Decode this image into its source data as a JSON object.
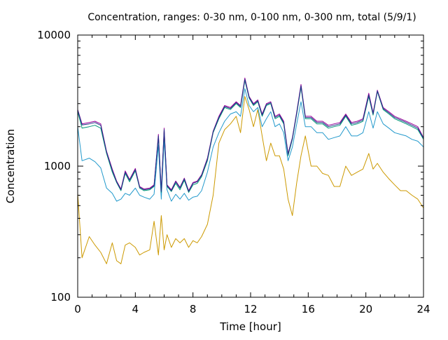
{
  "chart_data": {
    "type": "line",
    "title": "Concentration, ranges: 0-30 nm, 0-100 nm, 0-300 nm, total (5/9/1)",
    "xlabel": "Time [hour]",
    "ylabel": "Concentration",
    "xlim": [
      0,
      24
    ],
    "ylim": [
      100,
      10000
    ],
    "yscale": "log",
    "grid": false,
    "legend": "none",
    "xticks": [
      "0",
      "4",
      "8",
      "12",
      "16",
      "20",
      "24"
    ],
    "yticks": [
      "100",
      "1000",
      "10000"
    ],
    "series": [
      {
        "color": "#cc9900",
        "x": [
          0,
          0.3,
          0.8,
          1.2,
          1.6,
          2.0,
          2.4,
          2.7,
          3.0,
          3.3,
          3.6,
          4.0,
          4.3,
          4.6,
          5.0,
          5.3,
          5.6,
          5.8,
          6.0,
          6.2,
          6.5,
          6.8,
          7.1,
          7.4,
          7.7,
          8.0,
          8.3,
          8.6,
          9.0,
          9.4,
          9.8,
          10.2,
          10.6,
          11.0,
          11.3,
          11.6,
          11.9,
          12.2,
          12.5,
          12.8,
          13.1,
          13.4,
          13.7,
          14.0,
          14.3,
          14.6,
          14.9,
          15.2,
          15.5,
          15.8,
          16.2,
          16.6,
          17.0,
          17.4,
          17.8,
          18.2,
          18.6,
          19.0,
          19.4,
          19.8,
          20.2,
          20.5,
          20.8,
          21.2,
          21.6,
          22.0,
          22.4,
          22.8,
          23.2,
          23.6,
          24.0
        ],
        "y": [
          620,
          200,
          290,
          250,
          220,
          180,
          260,
          190,
          180,
          250,
          260,
          240,
          210,
          220,
          230,
          380,
          210,
          420,
          230,
          300,
          240,
          280,
          260,
          280,
          240,
          270,
          260,
          290,
          360,
          600,
          1500,
          1900,
          2100,
          2400,
          1800,
          3400,
          2700,
          2000,
          2700,
          1700,
          1100,
          1500,
          1200,
          1200,
          950,
          560,
          420,
          750,
          1200,
          1700,
          1000,
          1000,
          880,
          850,
          700,
          700,
          1000,
          850,
          900,
          950,
          1250,
          950,
          1050,
          900,
          800,
          720,
          650,
          650,
          600,
          560,
          480
        ]
      },
      {
        "color": "#2299cc",
        "x": [
          0,
          0.3,
          0.8,
          1.2,
          1.6,
          2.0,
          2.4,
          2.7,
          3.0,
          3.3,
          3.6,
          4.0,
          4.3,
          4.6,
          5.0,
          5.3,
          5.6,
          5.8,
          6.0,
          6.2,
          6.5,
          6.8,
          7.1,
          7.4,
          7.7,
          8.0,
          8.3,
          8.6,
          9.0,
          9.4,
          9.8,
          10.2,
          10.6,
          11.0,
          11.3,
          11.6,
          11.9,
          12.2,
          12.5,
          12.8,
          13.1,
          13.4,
          13.7,
          14.0,
          14.3,
          14.6,
          14.9,
          15.2,
          15.5,
          15.8,
          16.2,
          16.6,
          17.0,
          17.4,
          17.8,
          18.2,
          18.6,
          19.0,
          19.4,
          19.8,
          20.2,
          20.5,
          20.8,
          21.2,
          21.6,
          22.0,
          22.4,
          22.8,
          23.2,
          23.6,
          24.0
        ],
        "y": [
          2000,
          1100,
          1150,
          1080,
          970,
          680,
          620,
          540,
          560,
          620,
          600,
          680,
          600,
          580,
          560,
          610,
          1450,
          560,
          1600,
          660,
          540,
          610,
          560,
          620,
          550,
          580,
          590,
          650,
          900,
          1400,
          1800,
          2200,
          2500,
          2600,
          2400,
          3900,
          2900,
          2600,
          2800,
          2000,
          2300,
          2600,
          2000,
          2100,
          1800,
          1100,
          1400,
          2100,
          3100,
          2000,
          2000,
          1800,
          1800,
          1600,
          1650,
          1700,
          2000,
          1700,
          1700,
          1800,
          2600,
          1950,
          2600,
          2100,
          1950,
          1800,
          1750,
          1700,
          1600,
          1550,
          1400
        ]
      },
      {
        "color": "#009977",
        "x": [
          0,
          0.3,
          0.8,
          1.2,
          1.6,
          2.0,
          2.4,
          2.7,
          3.0,
          3.3,
          3.6,
          4.0,
          4.3,
          4.6,
          5.0,
          5.3,
          5.6,
          5.8,
          6.0,
          6.2,
          6.5,
          6.8,
          7.1,
          7.4,
          7.7,
          8.0,
          8.3,
          8.6,
          9.0,
          9.4,
          9.8,
          10.2,
          10.6,
          11.0,
          11.3,
          11.6,
          11.9,
          12.2,
          12.5,
          12.8,
          13.1,
          13.4,
          13.7,
          14.0,
          14.3,
          14.6,
          14.9,
          15.2,
          15.5,
          15.8,
          16.2,
          16.6,
          17.0,
          17.4,
          17.8,
          18.2,
          18.6,
          19.0,
          19.4,
          19.8,
          20.2,
          20.5,
          20.8,
          21.2,
          21.6,
          22.0,
          22.4,
          22.8,
          23.2,
          23.6,
          24.0
        ],
        "y": [
          2600,
          1950,
          2000,
          2050,
          1950,
          1250,
          900,
          750,
          650,
          880,
          760,
          920,
          680,
          650,
          660,
          700,
          1650,
          630,
          1850,
          700,
          640,
          740,
          660,
          780,
          630,
          720,
          740,
          830,
          1100,
          1800,
          2300,
          2800,
          2700,
          3000,
          2800,
          4500,
          3300,
          2900,
          3100,
          2400,
          2900,
          3000,
          2300,
          2400,
          2100,
          1200,
          1600,
          2500,
          4000,
          2300,
          2300,
          2100,
          2100,
          1950,
          2000,
          2050,
          2400,
          2050,
          2100,
          2200,
          3400,
          2450,
          3700,
          2700,
          2500,
          2300,
          2200,
          2100,
          2000,
          1900,
          1600
        ]
      },
      {
        "color": "#990099",
        "x": [
          0,
          0.3,
          0.8,
          1.2,
          1.6,
          2.0,
          2.4,
          2.7,
          3.0,
          3.3,
          3.6,
          4.0,
          4.3,
          4.6,
          5.0,
          5.3,
          5.6,
          5.8,
          6.0,
          6.2,
          6.5,
          6.8,
          7.1,
          7.4,
          7.7,
          8.0,
          8.3,
          8.6,
          9.0,
          9.4,
          9.8,
          10.2,
          10.6,
          11.0,
          11.3,
          11.6,
          11.9,
          12.2,
          12.5,
          12.8,
          13.1,
          13.4,
          13.7,
          14.0,
          14.3,
          14.6,
          14.9,
          15.2,
          15.5,
          15.8,
          16.2,
          16.6,
          17.0,
          17.4,
          17.8,
          18.2,
          18.6,
          19.0,
          19.4,
          19.8,
          20.2,
          20.5,
          20.8,
          21.2,
          21.6,
          22.0,
          22.4,
          22.8,
          23.2,
          23.6,
          24.0
        ],
        "y": [
          2700,
          2100,
          2150,
          2200,
          2100,
          1300,
          950,
          770,
          670,
          920,
          790,
          960,
          700,
          670,
          680,
          720,
          1750,
          650,
          1950,
          720,
          660,
          770,
          690,
          810,
          650,
          750,
          770,
          860,
          1150,
          1850,
          2400,
          2900,
          2800,
          3100,
          2900,
          4700,
          3400,
          3000,
          3200,
          2500,
          3000,
          3100,
          2400,
          2500,
          2200,
          1250,
          1650,
          2600,
          4200,
          2400,
          2400,
          2200,
          2200,
          2050,
          2100,
          2150,
          2500,
          2150,
          2200,
          2300,
          3600,
          2550,
          3800,
          2800,
          2600,
          2400,
          2300,
          2200,
          2100,
          2000,
          1650
        ]
      },
      {
        "color": "#223388",
        "x": [
          0,
          0.3,
          0.8,
          1.2,
          1.6,
          2.0,
          2.4,
          2.7,
          3.0,
          3.3,
          3.6,
          4.0,
          4.3,
          4.6,
          5.0,
          5.3,
          5.6,
          5.8,
          6.0,
          6.2,
          6.5,
          6.8,
          7.1,
          7.4,
          7.7,
          8.0,
          8.3,
          8.6,
          9.0,
          9.4,
          9.8,
          10.2,
          10.6,
          11.0,
          11.3,
          11.6,
          11.9,
          12.2,
          12.5,
          12.8,
          13.1,
          13.4,
          13.7,
          14.0,
          14.3,
          14.6,
          14.9,
          15.2,
          15.5,
          15.8,
          16.2,
          16.6,
          17.0,
          17.4,
          17.8,
          18.2,
          18.6,
          19.0,
          19.4,
          19.8,
          20.2,
          20.5,
          20.8,
          21.2,
          21.6,
          22.0,
          22.4,
          22.8,
          23.2,
          23.6,
          24.0
        ],
        "y": [
          2680,
          2060,
          2100,
          2150,
          2050,
          1280,
          930,
          760,
          660,
          900,
          780,
          940,
          690,
          660,
          670,
          710,
          1700,
          640,
          1900,
          710,
          650,
          760,
          680,
          800,
          640,
          740,
          760,
          850,
          1130,
          1830,
          2350,
          2850,
          2750,
          3050,
          2850,
          4600,
          3350,
          2950,
          3150,
          2450,
          2950,
          3050,
          2350,
          2450,
          2150,
          1230,
          1630,
          2550,
          4100,
          2350,
          2350,
          2150,
          2150,
          2000,
          2050,
          2100,
          2450,
          2100,
          2150,
          2250,
          3500,
          2500,
          3750,
          2750,
          2550,
          2350,
          2250,
          2150,
          2050,
          1950,
          1630
        ]
      }
    ]
  }
}
